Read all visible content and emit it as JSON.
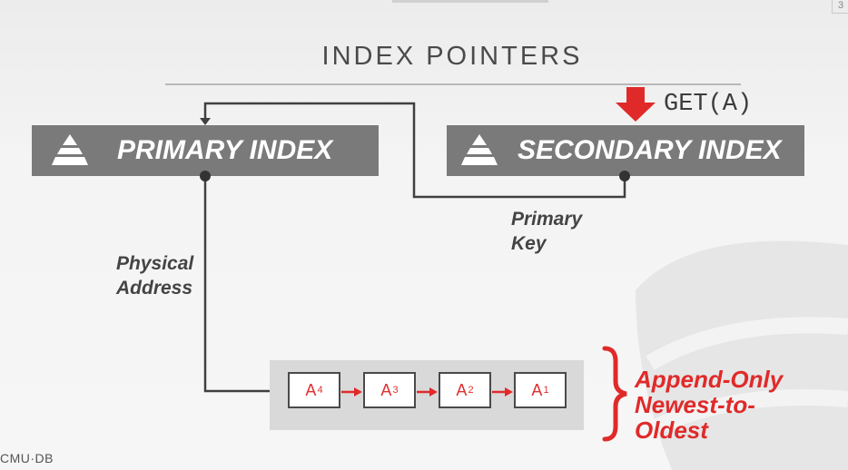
{
  "slide": {
    "number": "3",
    "title": "INDEX POINTERS",
    "footer_logo": "CMU·DB"
  },
  "primary_index": {
    "label": "PRIMARY INDEX"
  },
  "secondary_index": {
    "label": "SECONDARY INDEX"
  },
  "query": {
    "label": "GET(A)"
  },
  "edges": {
    "primary_key_line1": "Primary",
    "primary_key_line2": "Key",
    "physical_address_line1": "Physical",
    "physical_address_line2": "Address"
  },
  "version_chain": [
    {
      "base": "A",
      "sub": "4"
    },
    {
      "base": "A",
      "sub": "3"
    },
    {
      "base": "A",
      "sub": "2"
    },
    {
      "base": "A",
      "sub": "1"
    }
  ],
  "annotation": {
    "line1": "Append-Only",
    "line2": "Newest-to-",
    "line3": "Oldest"
  },
  "colors": {
    "box_gray": "#7a7a7a",
    "accent_red": "#e02a2a",
    "line_dark": "#404040"
  }
}
